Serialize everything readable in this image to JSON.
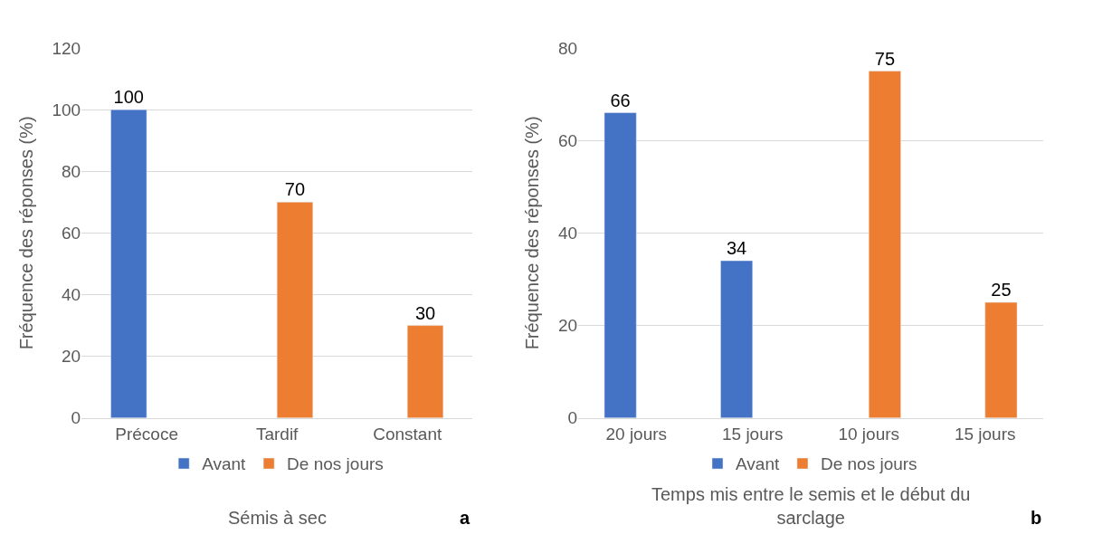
{
  "chart_data": [
    {
      "type": "bar",
      "categories": [
        "Précoce",
        "Tardif",
        "Constant"
      ],
      "xlabel": "Sémis à sec",
      "ylabel": "Fréquence des réponses (%)",
      "ylim": [
        0,
        120
      ],
      "yticks": [
        0,
        20,
        40,
        60,
        80,
        100,
        120
      ],
      "grid": "y",
      "legend": "bottom",
      "data_labels": true,
      "annotations": [
        "a"
      ],
      "series": [
        {
          "name": "Avant",
          "color": "#4472c4",
          "values": [
            100,
            null,
            null
          ]
        },
        {
          "name": "De nos jours",
          "color": "#ed7d31",
          "values": [
            null,
            70,
            30
          ]
        }
      ]
    },
    {
      "type": "bar",
      "categories": [
        "20 jours",
        "15 jours",
        "10 jours",
        "15 jours"
      ],
      "xlabel": "Temps mis entre le semis et le début du sarclage",
      "ylabel": "Fréquence des réponses (%)",
      "ylim": [
        0,
        80
      ],
      "yticks": [
        0,
        20,
        40,
        60,
        80
      ],
      "grid": "y",
      "legend": "bottom",
      "data_labels": true,
      "annotations": [
        "b"
      ],
      "series": [
        {
          "name": "Avant",
          "color": "#4472c4",
          "values": [
            66,
            34,
            null,
            null
          ]
        },
        {
          "name": "De nos jours",
          "color": "#ed7d31",
          "values": [
            null,
            null,
            75,
            25
          ]
        }
      ]
    }
  ]
}
